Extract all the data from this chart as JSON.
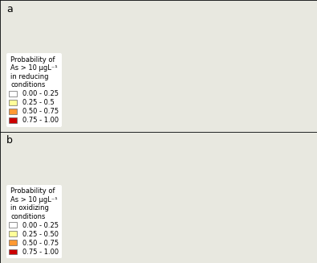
{
  "panel_a_label": "a",
  "panel_b_label": "b",
  "legend_a_title": "Probability of\nAs > 10 μgL⁻¹\nin reducing\nconditions",
  "legend_b_title": "Probability of\nAs > 10 μgL⁻¹\nin oxidizing\nconditions",
  "legend_labels_a": [
    "0.00 - 0.25",
    "0.25 - 0.5",
    "0.50 - 0.75",
    "0.75 - 1.00"
  ],
  "legend_labels_b": [
    "0.00 - 0.25",
    "0.25 - 0.50",
    "0.50 - 0.75",
    "0.75 - 1.00"
  ],
  "colors": [
    "#ffffff",
    "#ffff99",
    "#ff9933",
    "#cc0000"
  ],
  "edge_color": "#888888",
  "background_color": "#ffffff",
  "figure_bg": "#f0f0f0",
  "map_bg": "#d0e8f0",
  "border_color": "#555555",
  "box_edge_color": "#666666",
  "title_fontsize": 7,
  "legend_fontsize": 6,
  "label_fontsize": 9
}
